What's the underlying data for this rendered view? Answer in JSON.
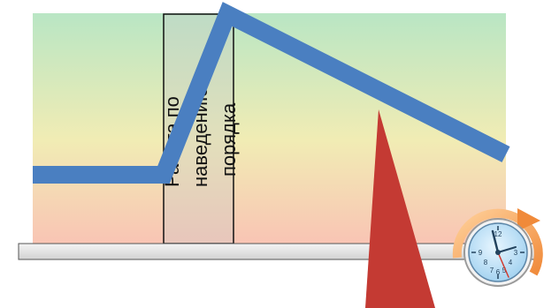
{
  "diagram": {
    "box_label_lines": [
      "Работа по",
      "наведению",
      "порядка"
    ],
    "colors": {
      "gradient_top": "#b9e6c4",
      "gradient_mid": "#f1ecb4",
      "gradient_bottom": "#f9c4b4",
      "trend_line": "#4a7fc1",
      "spike": "#c43a33",
      "baseline_bar": "#e6e6e6",
      "clock_ring": "#f08a3a",
      "clock_face": "#9fd0ef"
    },
    "icons": {
      "clock": "clock-icon",
      "refresh_arrow": "refresh-arrow-icon"
    }
  }
}
